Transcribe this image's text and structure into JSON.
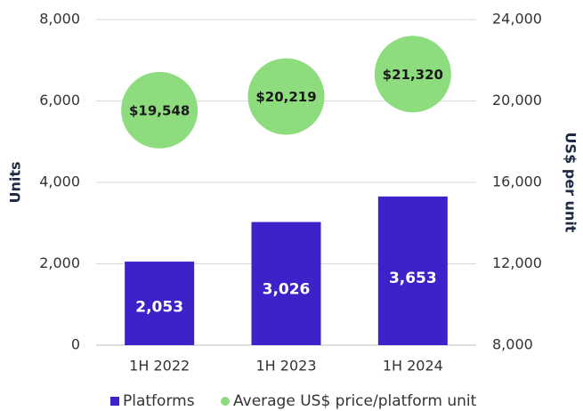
{
  "chart_data": {
    "type": "bar",
    "categories": [
      "1H 2022",
      "1H 2023",
      "1H 2024"
    ],
    "series": [
      {
        "name": "Platforms",
        "type": "bar",
        "color": "#3b22c9",
        "values": [
          2053,
          3026,
          3653
        ],
        "value_labels": [
          "2,053",
          "3,026",
          "3,653"
        ]
      },
      {
        "name": "Average US$ price/platform unit",
        "type": "scatter",
        "axis": "y2",
        "color": "#8ddc7e",
        "values": [
          19548,
          20219,
          21320
        ],
        "value_labels": [
          "$19,548",
          "$20,219",
          "$21,320"
        ]
      }
    ],
    "ylabel": "Units",
    "y2label": "US$ per unit",
    "ylim": [
      0,
      8000
    ],
    "yticks": [
      0,
      {
        "value": 2000,
        "label": "2,000"
      },
      {
        "value": 4000,
        "label": "4,000"
      },
      {
        "value": 6000,
        "label": "6,000"
      },
      {
        "value": 8000,
        "label": "8,000"
      }
    ],
    "y2lim": [
      8000,
      24000
    ],
    "y2ticks": [
      {
        "value": 8000,
        "label": "8,000"
      },
      {
        "value": 12000,
        "label": "12,000"
      },
      {
        "value": 16000,
        "label": "16,000"
      },
      {
        "value": 20000,
        "label": "20,000"
      },
      {
        "value": 24000,
        "label": "24,000"
      }
    ],
    "grid": true,
    "legend": "bottom"
  }
}
